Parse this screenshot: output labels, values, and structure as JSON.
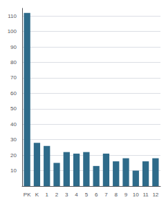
{
  "chart_data": {
    "type": "bar",
    "categories": [
      "PK",
      "K",
      "1",
      "2",
      "3",
      "4",
      "5",
      "6",
      "7",
      "8",
      "9",
      "10",
      "11",
      "12"
    ],
    "values": [
      112,
      28,
      26,
      15,
      22,
      21,
      22,
      13,
      21,
      16,
      18,
      10,
      16,
      18
    ],
    "color": "#2e6b8a",
    "ylim": [
      0,
      115
    ],
    "yticks": [
      10,
      20,
      30,
      40,
      50,
      60,
      70,
      80,
      90,
      100,
      110
    ],
    "grid": true
  }
}
